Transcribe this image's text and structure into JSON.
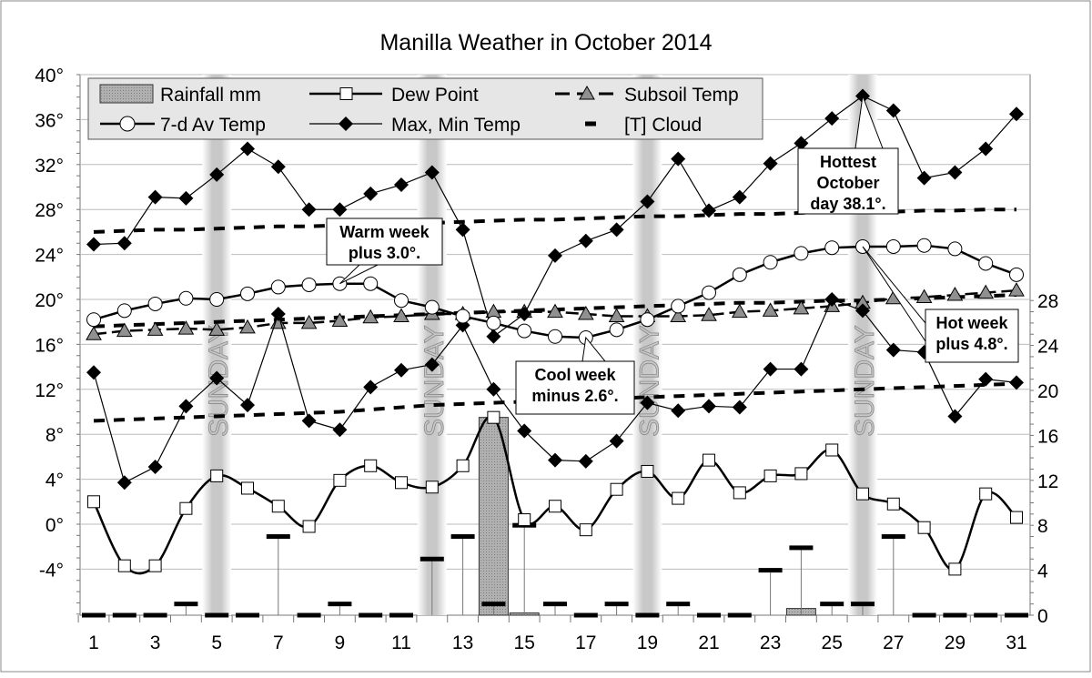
{
  "chart_data": {
    "type": "line",
    "title": "Manilla Weather in October 2014",
    "x": [
      1,
      2,
      3,
      4,
      5,
      6,
      7,
      8,
      9,
      10,
      11,
      12,
      13,
      14,
      15,
      16,
      17,
      18,
      19,
      20,
      21,
      22,
      23,
      24,
      25,
      26,
      27,
      28,
      29,
      30,
      31
    ],
    "x_tick_labels": [
      "1",
      "3",
      "5",
      "7",
      "9",
      "11",
      "13",
      "15",
      "17",
      "19",
      "21",
      "23",
      "25",
      "27",
      "29",
      "31"
    ],
    "y_left": {
      "range": [
        -8,
        40
      ],
      "tick_labels": [
        "40°",
        "36°",
        "32°",
        "28°",
        "24°",
        "20°",
        "16°",
        "12°",
        "8°",
        "4°",
        "0°",
        "-4°"
      ]
    },
    "y_right": {
      "range": [
        0,
        48
      ],
      "tick_labels": [
        "28",
        "24",
        "20",
        "16",
        "12",
        "8",
        "4",
        "0"
      ]
    },
    "grid": true,
    "legend_placement": "top",
    "sundays": [
      5,
      12,
      19,
      26
    ],
    "sunday_label": "SUNDAY",
    "series": [
      {
        "name": "Rainfall mm",
        "axis": "right",
        "kind": "bar",
        "color": "#a0a0a0",
        "values": [
          0,
          0,
          0,
          0,
          0,
          0,
          0,
          0,
          0,
          0,
          0,
          0,
          0,
          17.6,
          0.2,
          0,
          0,
          0,
          0,
          0,
          0,
          0,
          0,
          0.6,
          0,
          0,
          0,
          0,
          0,
          0,
          0
        ]
      },
      {
        "name": "Dew Point",
        "axis": "left",
        "kind": "line-square",
        "values": [
          2.0,
          -3.7,
          -3.7,
          1.4,
          4.3,
          3.2,
          1.6,
          -0.2,
          3.9,
          5.2,
          3.7,
          3.3,
          5.2,
          9.5,
          0.4,
          1.6,
          -0.5,
          3.1,
          4.7,
          2.3,
          5.7,
          2.8,
          4.3,
          4.5,
          6.6,
          2.7,
          1.8,
          -0.3,
          -4.0,
          2.7,
          0.6
        ]
      },
      {
        "name": "Subsoil Temp",
        "axis": "left",
        "kind": "dash-triangle",
        "color": "#909090",
        "values": [
          16.9,
          17.2,
          17.3,
          17.4,
          17.3,
          17.5,
          17.9,
          17.9,
          18.1,
          18.4,
          18.5,
          18.7,
          18.7,
          18.9,
          18.9,
          18.9,
          18.7,
          18.5,
          18.5,
          18.5,
          18.6,
          18.9,
          19.0,
          19.2,
          19.4,
          19.7,
          20.1,
          20.2,
          20.4,
          20.6,
          20.8
        ]
      },
      {
        "name": "7-d Av Temp",
        "axis": "left",
        "kind": "line-circle",
        "values": [
          18.2,
          19.0,
          19.6,
          20.1,
          20.0,
          20.5,
          21.1,
          21.3,
          21.4,
          21.4,
          19.9,
          19.3,
          18.5,
          17.9,
          17.2,
          16.7,
          16.6,
          17.3,
          18.2,
          19.4,
          20.6,
          22.2,
          23.3,
          24.1,
          24.6,
          24.7,
          24.7,
          24.8,
          24.5,
          23.2,
          22.2
        ]
      },
      {
        "name": "Max, Min Temp",
        "axis": "left",
        "kind": "line-diamond",
        "max": [
          24.9,
          25.0,
          29.1,
          29.0,
          31.1,
          33.4,
          31.8,
          28.0,
          28.0,
          29.4,
          30.2,
          31.3,
          26.2,
          16.7,
          18.7,
          23.9,
          25.2,
          26.2,
          28.7,
          32.5,
          27.9,
          29.1,
          32.1,
          33.9,
          36.1,
          38.1,
          36.8,
          30.8,
          31.3,
          33.4,
          36.5
        ],
        "min": [
          13.5,
          3.7,
          5.1,
          10.5,
          13.0,
          10.6,
          18.7,
          9.2,
          8.4,
          12.2,
          13.7,
          14.2,
          17.7,
          12.0,
          8.3,
          5.7,
          5.6,
          7.4,
          10.8,
          10.1,
          10.5,
          10.4,
          13.8,
          13.8,
          20.0,
          19.0,
          15.5,
          15.3,
          9.6,
          12.9,
          12.6
        ]
      },
      {
        "name": "[T] Cloud",
        "axis": "right",
        "kind": "dash-stem",
        "values": [
          0,
          0,
          0,
          1,
          0,
          0,
          7,
          0,
          1,
          0,
          0,
          5,
          7,
          1,
          8,
          1,
          0,
          1,
          0,
          1,
          0,
          0,
          4,
          6,
          1,
          1,
          7,
          0,
          0,
          0,
          0
        ]
      },
      {
        "axis": "left",
        "kind": "dotted",
        "values": [
          26.0,
          26.1,
          26.2,
          26.2,
          26.3,
          26.4,
          26.5,
          26.5,
          26.6,
          26.7,
          26.8,
          26.8,
          26.9,
          27.0,
          27.1,
          27.1,
          27.2,
          27.3,
          27.4,
          27.4,
          27.5,
          27.6,
          27.6,
          27.7,
          27.8,
          27.8,
          27.8,
          27.9,
          27.9,
          28.0,
          28.0
        ]
      },
      {
        "axis": "left",
        "kind": "dotted",
        "values": [
          17.6,
          17.7,
          17.8,
          17.9,
          18.0,
          18.1,
          18.2,
          18.3,
          18.4,
          18.5,
          18.6,
          18.7,
          18.8,
          18.9,
          19.0,
          19.1,
          19.2,
          19.3,
          19.4,
          19.5,
          19.6,
          19.7,
          19.7,
          19.8,
          19.9,
          19.9,
          20.0,
          20.1,
          20.2,
          20.3,
          20.4
        ]
      },
      {
        "axis": "left",
        "kind": "dotted",
        "values": [
          9.2,
          9.3,
          9.4,
          9.5,
          9.6,
          9.7,
          9.8,
          9.9,
          10.0,
          10.2,
          10.4,
          10.6,
          10.7,
          10.8,
          10.9,
          11.0,
          11.1,
          11.2,
          11.3,
          11.4,
          11.5,
          11.6,
          11.7,
          11.8,
          11.9,
          12.0,
          12.1,
          12.2,
          12.3,
          12.4,
          12.5
        ]
      }
    ],
    "annotations": [
      {
        "lines": [
          "Warm week",
          "plus 3.0°."
        ],
        "day": 9,
        "series": "7-d Av Temp"
      },
      {
        "lines": [
          "Cool week",
          "minus 2.6°."
        ],
        "day": 17,
        "series": "7-d Av Temp"
      },
      {
        "lines": [
          "Hottest",
          "October",
          "day 38.1°."
        ],
        "day": 26,
        "series": "Max, Min Temp"
      },
      {
        "lines": [
          "Hot week",
          "plus 4.8°."
        ],
        "day": 26,
        "series": "7-d Av Temp"
      }
    ]
  }
}
